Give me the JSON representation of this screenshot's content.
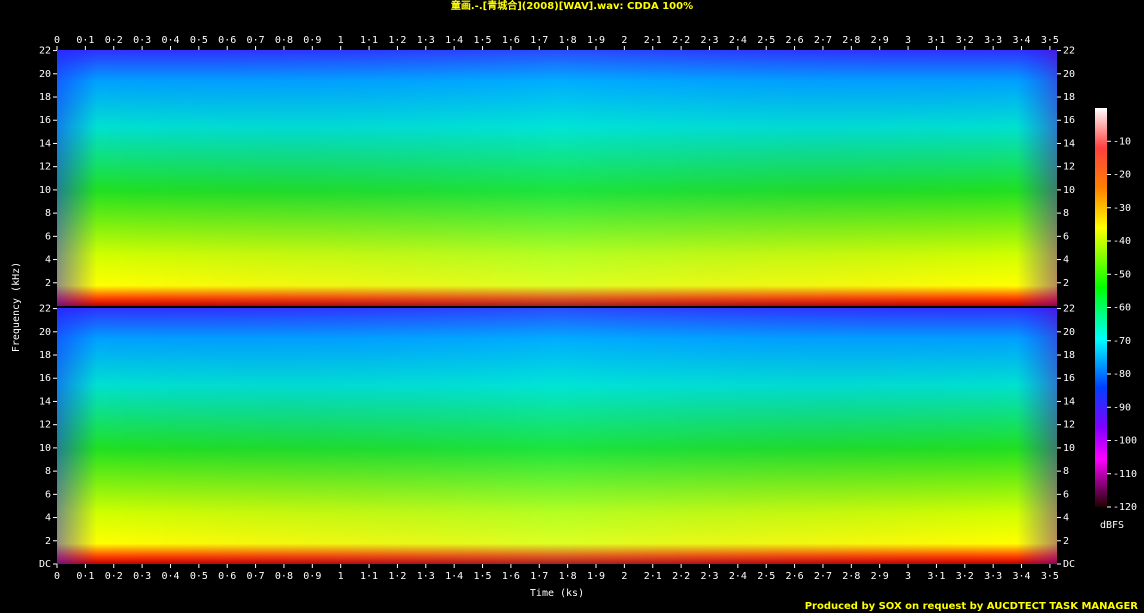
{
  "chart_data": [
    {
      "type": "spectrogram",
      "title": "童画.-.[青城合](2008)[WAV].wav: CDDA 100%",
      "y_label": "Frequency (kHz)",
      "xlim": [
        0,
        3.525
      ],
      "ylim": [
        0,
        22.05
      ],
      "xticks": [
        0,
        {
          "value": 0.1,
          "label": "0·1"
        },
        {
          "value": 0.2,
          "label": "0·2"
        },
        {
          "value": 0.3,
          "label": "0·3"
        },
        {
          "value": 0.4,
          "label": "0·4"
        },
        {
          "value": 0.5,
          "label": "0·5"
        },
        {
          "value": 0.6,
          "label": "0·6"
        },
        {
          "value": 0.7,
          "label": "0·7"
        },
        {
          "value": 0.8,
          "label": "0·8"
        },
        {
          "value": 0.9,
          "label": "0·9"
        },
        1,
        {
          "value": 1.1,
          "label": "1·1"
        },
        {
          "value": 1.2,
          "label": "1·2"
        },
        {
          "value": 1.3,
          "label": "1·3"
        },
        {
          "value": 1.4,
          "label": "1·4"
        },
        {
          "value": 1.5,
          "label": "1·5"
        },
        {
          "value": 1.6,
          "label": "1·6"
        },
        {
          "value": 1.7,
          "label": "1·7"
        },
        {
          "value": 1.8,
          "label": "1·8"
        },
        {
          "value": 1.9,
          "label": "1·9"
        },
        2,
        {
          "value": 2.1,
          "label": "2·1"
        },
        {
          "value": 2.2,
          "label": "2·2"
        },
        {
          "value": 2.3,
          "label": "2·3"
        },
        {
          "value": 2.4,
          "label": "2·4"
        },
        {
          "value": 2.5,
          "label": "2·5"
        },
        {
          "value": 2.6,
          "label": "2·6"
        },
        {
          "value": 2.7,
          "label": "2·7"
        },
        {
          "value": 2.8,
          "label": "2·8"
        },
        {
          "value": 2.9,
          "label": "2·9"
        },
        3,
        {
          "value": 3.1,
          "label": "3·1"
        },
        {
          "value": 3.2,
          "label": "3·2"
        },
        {
          "value": 3.3,
          "label": "3·3"
        },
        {
          "value": 3.4,
          "label": "3·4"
        },
        {
          "value": 3.5,
          "label": "3·5"
        }
      ],
      "yticks": [
        2,
        4,
        6,
        8,
        10,
        12,
        14,
        16,
        18,
        20,
        22
      ],
      "color_label": "dBFS",
      "zlim": [
        -120,
        0
      ],
      "zticks": [
        -10,
        -20,
        -30,
        -40,
        -50,
        -60,
        -70,
        -80,
        -90,
        -100,
        -110,
        -120
      ]
    },
    {
      "type": "spectrogram",
      "x_label": "Time (ks)",
      "footer": "Produced by SOX on request by AUCDTECT TASK MANAGER",
      "xlim": [
        0,
        3.525
      ],
      "ylim": [
        0,
        22.05
      ],
      "xticks": [
        0,
        {
          "value": 0.1,
          "label": "0·1"
        },
        {
          "value": 0.2,
          "label": "0·2"
        },
        {
          "value": 0.3,
          "label": "0·3"
        },
        {
          "value": 0.4,
          "label": "0·4"
        },
        {
          "value": 0.5,
          "label": "0·5"
        },
        {
          "value": 0.6,
          "label": "0·6"
        },
        {
          "value": 0.7,
          "label": "0·7"
        },
        {
          "value": 0.8,
          "label": "0·8"
        },
        {
          "value": 0.9,
          "label": "0·9"
        },
        1,
        {
          "value": 1.1,
          "label": "1·1"
        },
        {
          "value": 1.2,
          "label": "1·2"
        },
        {
          "value": 1.3,
          "label": "1·3"
        },
        {
          "value": 1.4,
          "label": "1·4"
        },
        {
          "value": 1.5,
          "label": "1·5"
        },
        {
          "value": 1.6,
          "label": "1·6"
        },
        {
          "value": 1.7,
          "label": "1·7"
        },
        {
          "value": 1.8,
          "label": "1·8"
        },
        {
          "value": 1.9,
          "label": "1·9"
        },
        2,
        {
          "value": 2.1,
          "label": "2·1"
        },
        {
          "value": 2.2,
          "label": "2·2"
        },
        {
          "value": 2.3,
          "label": "2·3"
        },
        {
          "value": 2.4,
          "label": "2·4"
        },
        {
          "value": 2.5,
          "label": "2·5"
        },
        {
          "value": 2.6,
          "label": "2·6"
        },
        {
          "value": 2.7,
          "label": "2·7"
        },
        {
          "value": 2.8,
          "label": "2·8"
        },
        {
          "value": 2.9,
          "label": "2·9"
        },
        3,
        {
          "value": 3.1,
          "label": "3·1"
        },
        {
          "value": 3.2,
          "label": "3·2"
        },
        {
          "value": 3.3,
          "label": "3·3"
        },
        {
          "value": 3.4,
          "label": "3·4"
        },
        {
          "value": 3.5,
          "label": "3·5"
        }
      ],
      "yticks": [
        {
          "value": 0,
          "label": "DC"
        },
        2,
        4,
        6,
        8,
        10,
        12,
        14,
        16,
        18,
        20,
        22
      ]
    }
  ]
}
